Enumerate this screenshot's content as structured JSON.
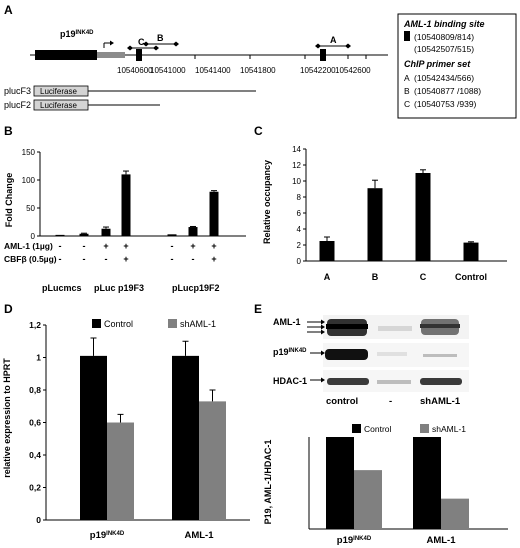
{
  "panel_labels": [
    "A",
    "B",
    "C",
    "D",
    "E"
  ],
  "panel_a": {
    "gene_label": "p19",
    "gene_label_sup": "INK4D",
    "primer_markers": [
      "C",
      "B",
      "A"
    ],
    "coordinates": [
      "10540600",
      "10541000",
      "10541400",
      "10541800",
      "10542200",
      "10542600"
    ],
    "constructs": [
      {
        "name": "plucF3",
        "box_label": "Luciferase"
      },
      {
        "name": "plucF2",
        "box_label": "Luciferase"
      }
    ],
    "legend": {
      "binding_site_title": "AML-1 binding site",
      "binding_sites": [
        "(10540809/814)",
        "(10542507/515)"
      ],
      "primer_title": "ChIP primer set",
      "primers": [
        {
          "label": "A",
          "range": "(10542434/566)"
        },
        {
          "label": "B",
          "range": "(10540877 /1088)"
        },
        {
          "label": "C",
          "range": "(10540753 /939)"
        }
      ]
    }
  },
  "panel_e": {
    "blot_labels": [
      {
        "name": "AML-1",
        "sup": ""
      },
      {
        "name": "p19",
        "sup": "INK4D"
      },
      {
        "name": "HDAC-1",
        "sup": ""
      }
    ],
    "lane_labels": [
      "control",
      "-",
      "shAML-1"
    ]
  },
  "chart_data": [
    {
      "panel": "B",
      "type": "bar",
      "ylabel": "Fold Change",
      "ylim": [
        0,
        150
      ],
      "yticks": [
        0,
        50,
        100,
        150
      ],
      "values": [
        2,
        4,
        13,
        110,
        3,
        16,
        79
      ],
      "errors": [
        0,
        1,
        3,
        6,
        0,
        1,
        2
      ],
      "condition_rows": [
        {
          "label": "AML-1 (1µg)",
          "marks": [
            "-",
            "-",
            "+",
            "+",
            "-",
            "+",
            "+"
          ]
        },
        {
          "label": "CBFβ (0.5µg)",
          "marks": [
            "-",
            "-",
            "-",
            "+",
            "-",
            "-",
            "+"
          ]
        }
      ],
      "groups": [
        "pLucmcs",
        "pLuc p19F3",
        "pLucp19F2"
      ],
      "grid": false
    },
    {
      "panel": "C",
      "type": "bar",
      "ylabel": "Relative occupancy",
      "categories": [
        "A",
        "B",
        "C",
        "Control"
      ],
      "values": [
        2.5,
        9.1,
        11.0,
        2.3
      ],
      "errors": [
        0.5,
        1.0,
        0.4,
        0.1
      ],
      "ylim": [
        0,
        14
      ],
      "yticks": [
        0,
        2,
        4,
        6,
        8,
        10,
        12,
        14
      ],
      "grid": false
    },
    {
      "panel": "D",
      "type": "bar",
      "ylabel": "relative expression to HPRT",
      "categories": [
        "p19",
        "AML-1"
      ],
      "category_sups": [
        "INK4D",
        ""
      ],
      "yticks": [
        "0",
        "0,2",
        "0,4",
        "0,6",
        "0,8",
        "1",
        "1,2"
      ],
      "ylim": [
        0,
        1.2
      ],
      "series": [
        {
          "name": "Control",
          "color": "#000000",
          "values": [
            1.01,
            1.01
          ],
          "errors": [
            0.11,
            0.09
          ]
        },
        {
          "name": "shAML-1",
          "color": "#808080",
          "values": [
            0.6,
            0.73
          ],
          "errors": [
            0.05,
            0.07
          ]
        }
      ],
      "legend_position": "top",
      "grid": false
    },
    {
      "panel": "E",
      "type": "bar",
      "ylabel": "P19, AML-1/HDAC-1",
      "categories": [
        "p19",
        "AML-1"
      ],
      "category_sups": [
        "INK4D",
        ""
      ],
      "ylim": [
        0,
        1
      ],
      "series": [
        {
          "name": "Control",
          "color": "#000000",
          "values": [
            1.0,
            1.0
          ]
        },
        {
          "name": "shAML-1",
          "color": "#808080",
          "values": [
            0.64,
            0.33
          ]
        }
      ],
      "legend_position": "top",
      "grid": false
    }
  ]
}
